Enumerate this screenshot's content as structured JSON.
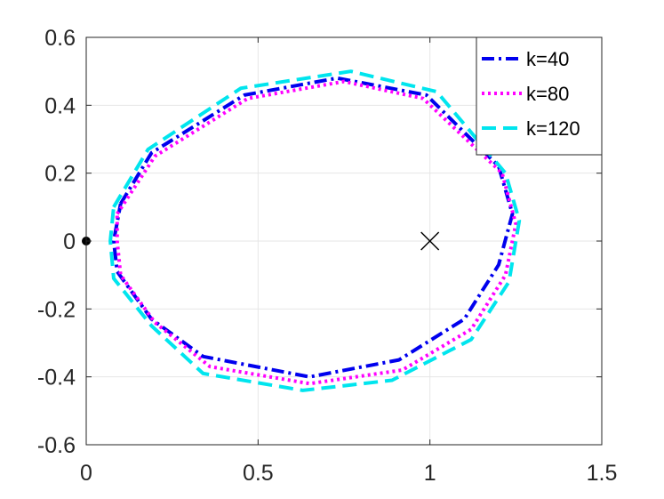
{
  "chart_data": {
    "type": "line",
    "title": "",
    "xlabel": "",
    "ylabel": "",
    "xlim": [
      0,
      1.5
    ],
    "ylim": [
      -0.6,
      0.6
    ],
    "grid": true,
    "legend_position": "top-right",
    "xticks": [
      0,
      0.5,
      1,
      1.5
    ],
    "yticks": [
      -0.6,
      -0.4,
      -0.2,
      0,
      0.2,
      0.4,
      0.6
    ],
    "xtick_labels": [
      "0",
      "0.5",
      "1",
      "1.5"
    ],
    "ytick_labels": [
      "-0.6",
      "-0.4",
      "-0.2",
      "0",
      "0.2",
      "0.4",
      "0.6"
    ],
    "series": [
      {
        "name": "k=40",
        "color": "#0000ee",
        "style": "dashdot",
        "x": [
          0.1,
          0.19,
          0.46,
          0.73,
          0.99,
          1.2,
          1.24,
          1.2,
          1.1,
          0.91,
          0.65,
          0.34,
          0.19,
          0.09,
          0.08,
          0.1
        ],
        "y": [
          0.11,
          0.26,
          0.43,
          0.48,
          0.43,
          0.22,
          0.08,
          -0.07,
          -0.23,
          -0.35,
          -0.4,
          -0.34,
          -0.23,
          -0.09,
          0.0,
          0.11
        ]
      },
      {
        "name": "k=80",
        "color": "#ff00ff",
        "style": "dotted",
        "x": [
          0.09,
          0.2,
          0.47,
          0.75,
          0.98,
          1.21,
          1.25,
          1.22,
          1.12,
          0.92,
          0.65,
          0.36,
          0.2,
          0.1,
          0.09,
          0.09
        ],
        "y": [
          0.08,
          0.25,
          0.42,
          0.47,
          0.42,
          0.2,
          0.05,
          -0.1,
          -0.26,
          -0.38,
          -0.42,
          -0.37,
          -0.24,
          -0.1,
          0.0,
          0.08
        ]
      },
      {
        "name": "k=120",
        "color": "#00e5ee",
        "style": "dashed",
        "x": [
          0.08,
          0.18,
          0.45,
          0.77,
          1.02,
          1.22,
          1.26,
          1.23,
          1.12,
          0.89,
          0.63,
          0.34,
          0.19,
          0.08,
          0.07,
          0.08
        ],
        "y": [
          0.1,
          0.27,
          0.45,
          0.5,
          0.44,
          0.2,
          0.06,
          -0.12,
          -0.29,
          -0.41,
          -0.44,
          -0.39,
          -0.25,
          -0.11,
          0.0,
          0.1
        ]
      }
    ],
    "markers": [
      {
        "name": "dot-marker",
        "symbol": "dot",
        "x": 0,
        "y": 0,
        "color": "#000000"
      },
      {
        "name": "cross-marker",
        "symbol": "x",
        "x": 1,
        "y": 0,
        "color": "#000000"
      }
    ]
  }
}
